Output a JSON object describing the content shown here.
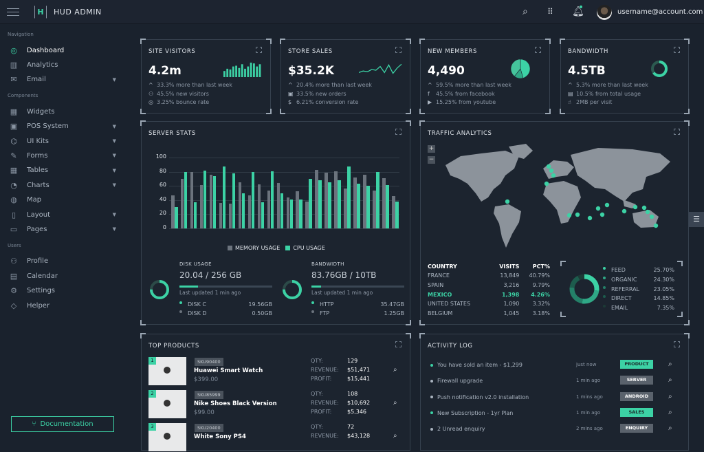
{
  "header": {
    "brand": "HUD ADMIN",
    "logo_letter": "H",
    "user": "username@account.com",
    "icons": [
      "menu-icon",
      "search-icon",
      "apps-grid-icon",
      "bell-icon"
    ]
  },
  "sidebar": {
    "sections": [
      {
        "title": "Navigation",
        "items": [
          {
            "label": "Dashboard",
            "icon": "◎",
            "active": true
          },
          {
            "label": "Analytics",
            "icon": "▥"
          },
          {
            "label": "Email",
            "icon": "✉",
            "caret": true
          }
        ]
      },
      {
        "title": "Components",
        "items": [
          {
            "label": "Widgets",
            "icon": "▦"
          },
          {
            "label": "POS System",
            "icon": "▣",
            "caret": true
          },
          {
            "label": "UI Kits",
            "icon": "⌬",
            "caret": true
          },
          {
            "label": "Forms",
            "icon": "✎",
            "caret": true
          },
          {
            "label": "Tables",
            "icon": "▦",
            "caret": true
          },
          {
            "label": "Charts",
            "icon": "◔",
            "caret": true
          },
          {
            "label": "Map",
            "icon": "◍"
          },
          {
            "label": "Layout",
            "icon": "▯",
            "caret": true
          },
          {
            "label": "Pages",
            "icon": "▭",
            "caret": true
          }
        ]
      },
      {
        "title": "Users",
        "items": [
          {
            "label": "Profile",
            "icon": "⚇"
          },
          {
            "label": "Calendar",
            "icon": "▤"
          },
          {
            "label": "Settings",
            "icon": "⚙"
          },
          {
            "label": "Helper",
            "icon": "◇"
          }
        ]
      }
    ],
    "documentation": "Documentation"
  },
  "cards": [
    {
      "title": "SITE VISITORS",
      "value": "4.2m",
      "stats": [
        {
          "icon": "^",
          "text": "33.3% more than last week"
        },
        {
          "icon": "⚇",
          "text": "45.5% new visitors"
        },
        {
          "icon": "◎",
          "text": "3.25% bounce rate"
        }
      ],
      "mini": "bars",
      "mini_values": [
        40,
        55,
        50,
        70,
        75,
        60,
        85,
        55,
        70,
        95,
        90,
        70,
        85
      ]
    },
    {
      "title": "STORE SALES",
      "value": "$35.2K",
      "stats": [
        {
          "icon": "^",
          "text": "20.4% more than last week"
        },
        {
          "icon": "▣",
          "text": "33.5% new orders"
        },
        {
          "icon": "$",
          "text": "6.21% conversion rate"
        }
      ],
      "mini": "line",
      "mini_values": [
        30,
        40,
        35,
        50,
        45,
        70,
        30,
        80,
        25,
        60,
        85
      ]
    },
    {
      "title": "NEW MEMBERS",
      "value": "4,490",
      "stats": [
        {
          "icon": "^",
          "text": "59.5% more than last week"
        },
        {
          "icon": "f",
          "text": "45.5% from facebook"
        },
        {
          "icon": "▶",
          "text": "15.25% from youtube"
        }
      ],
      "mini": "pie",
      "mini_values": [
        45.5,
        15.25,
        39.25
      ]
    },
    {
      "title": "BANDWIDTH",
      "value": "4.5TB",
      "stats": [
        {
          "icon": "^",
          "text": "5.3% more than last week"
        },
        {
          "icon": "▤",
          "text": "10.5% from total usage"
        },
        {
          "icon": "☝",
          "text": "2MB per visit"
        }
      ],
      "mini": "donut",
      "mini_values": [
        65,
        35
      ]
    }
  ],
  "server_stats": {
    "title": "SERVER STATS",
    "chart_data": {
      "type": "bar",
      "ylim": [
        0,
        100
      ],
      "yticks": [
        "100",
        "80",
        "60",
        "40",
        "20",
        "0"
      ],
      "colors": {
        "memory": "#6b737d",
        "cpu": "#3cd2a5"
      },
      "series": [
        {
          "name": "MEMORY USAGE",
          "values": [
            47,
            70,
            80,
            61,
            76,
            36,
            35,
            65,
            47,
            62,
            53,
            64,
            44,
            52,
            38,
            83,
            79,
            81,
            56,
            72,
            76,
            53,
            71,
            46
          ]
        },
        {
          "name": "CPU USAGE",
          "values": [
            30,
            80,
            37,
            82,
            74,
            87,
            78,
            50,
            80,
            37,
            81,
            50,
            41,
            41,
            70,
            68,
            65,
            68,
            87,
            63,
            60,
            80,
            61,
            38
          ]
        }
      ],
      "legend": "bottom"
    },
    "disk": {
      "label": "DISK USAGE",
      "value": "20.04 / 256 GB",
      "progress": 0.2,
      "updated": "Last updated 1 min ago",
      "rows": [
        {
          "name": "DISK C",
          "value": "19.56GB"
        },
        {
          "name": "DISK D",
          "value": "0.50GB"
        }
      ]
    },
    "bandwidth": {
      "label": "BANDWIDTH",
      "value": "83.76GB / 10TB",
      "progress": 0.1,
      "updated": "Last updated 1 min ago",
      "rows": [
        {
          "name": "HTTP",
          "value": "35.47GB"
        },
        {
          "name": "FTP",
          "value": "1.25GB"
        }
      ]
    }
  },
  "traffic": {
    "title": "TRAFFIC ANALYTICS",
    "zoom_in": "+",
    "zoom_out": "−",
    "headers": [
      "COUNTRY",
      "VISITS",
      "PCT%"
    ],
    "rows": [
      [
        "FRANCE",
        "13,849",
        "40.79%"
      ],
      [
        "SPAIN",
        "3,216",
        "9.79%"
      ],
      [
        "MEXICO",
        "1,398",
        "4.26%"
      ],
      [
        "UNITED STATES",
        "1,090",
        "3.32%"
      ],
      [
        "BELGIUM",
        "1,045",
        "3.18%"
      ]
    ],
    "highlight_row": 2,
    "sources": [
      {
        "name": "FEED",
        "pct": "25.70%"
      },
      {
        "name": "ORGANIC",
        "pct": "24.30%"
      },
      {
        "name": "REFERRAL",
        "pct": "23.05%"
      },
      {
        "name": "DIRECT",
        "pct": "14.85%"
      },
      {
        "name": "EMAIL",
        "pct": "7.35%"
      }
    ]
  },
  "products": {
    "title": "TOP PRODUCTS",
    "labels": {
      "qty": "QTY:",
      "revenue": "REVENUE:",
      "profit": "PROFIT:"
    },
    "items": [
      {
        "rank": "1",
        "sku": "SKU90400",
        "name": "Huawei Smart Watch",
        "price": "$399.00",
        "qty": "129",
        "revenue": "$51,471",
        "profit": "$15,441"
      },
      {
        "rank": "2",
        "sku": "SKU85999",
        "name": "Nike Shoes Black Version",
        "price": "$99.00",
        "qty": "108",
        "revenue": "$10,692",
        "profit": "$5,346"
      },
      {
        "rank": "3",
        "sku": "SKU20400",
        "name": "White Sony PS4",
        "price": "",
        "qty": "72",
        "revenue": "$43,128",
        "profit": ""
      }
    ]
  },
  "activity": {
    "title": "ACTIVITY LOG",
    "items": [
      {
        "text": "You have sold an item - $1,299",
        "time": "just now",
        "badge": "PRODUCT",
        "accent": true
      },
      {
        "text": "Firewall upgrade",
        "time": "1 min ago",
        "badge": "SERVER",
        "accent": false
      },
      {
        "text": "Push notification v2.0 installation",
        "time": "1 mins ago",
        "badge": "ANDROID",
        "accent": false
      },
      {
        "text": "New Subscription - 1yr Plan",
        "time": "1 min ago",
        "badge": "SALES",
        "accent": true
      },
      {
        "text": "2 Unread enquiry",
        "time": "2 mins ago",
        "badge": "ENQUIRY",
        "accent": false
      }
    ]
  },
  "colors": {
    "accent": "#3cd2a5",
    "background": "#1a222d",
    "muted": "#6b737d"
  }
}
